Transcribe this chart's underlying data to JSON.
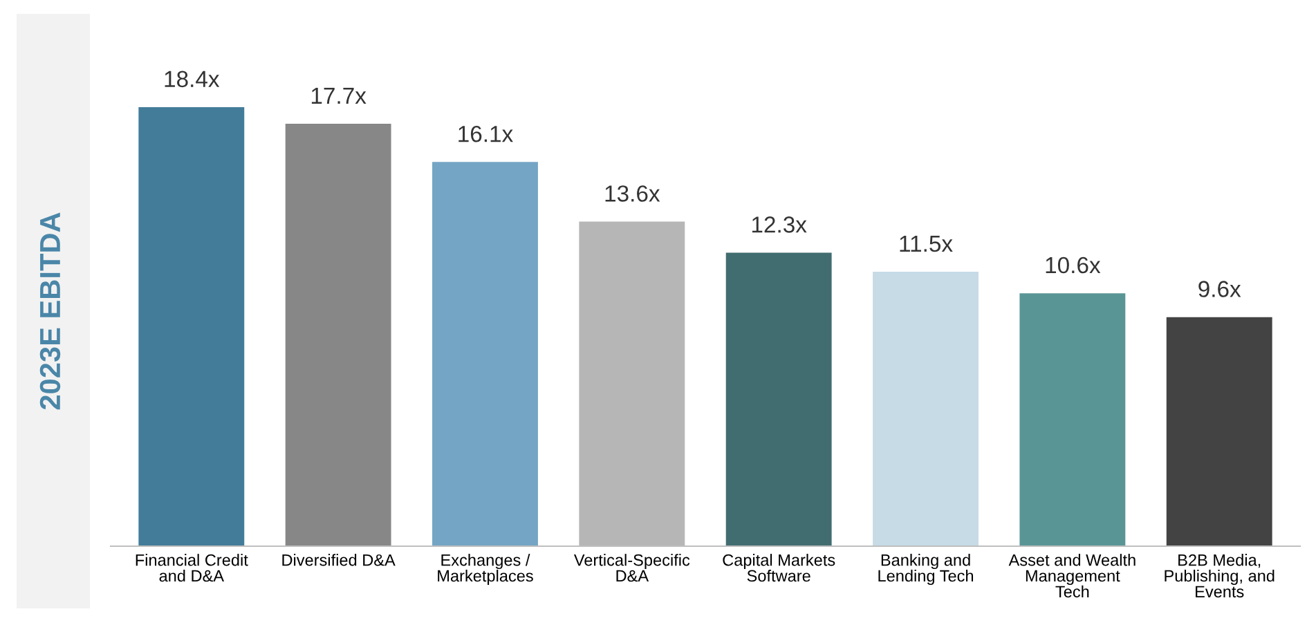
{
  "chart_data": {
    "type": "bar",
    "ylabel": "2023E EBITDA",
    "categories": [
      "Financial Credit\nand D&A",
      "Diversified D&A",
      "Exchanges /\nMarketplaces",
      "Vertical-Specific\nD&A",
      "Capital Markets\nSoftware",
      "Banking and\nLending Tech",
      "Asset and Wealth\nManagement\nTech",
      "B2B Media,\nPublishing, and\nEvents"
    ],
    "values": [
      18.4,
      17.7,
      16.1,
      13.6,
      12.3,
      11.5,
      10.6,
      9.6
    ],
    "value_labels": [
      "18.4x",
      "17.7x",
      "16.1x",
      "13.6x",
      "12.3x",
      "11.5x",
      "10.6x",
      "9.6x"
    ],
    "colors": [
      "#437c99",
      "#878787",
      "#74a5c4",
      "#b6b6b6",
      "#426d70",
      "#c6dbe6",
      "#5a9596",
      "#434343"
    ],
    "data_labels": false
  }
}
